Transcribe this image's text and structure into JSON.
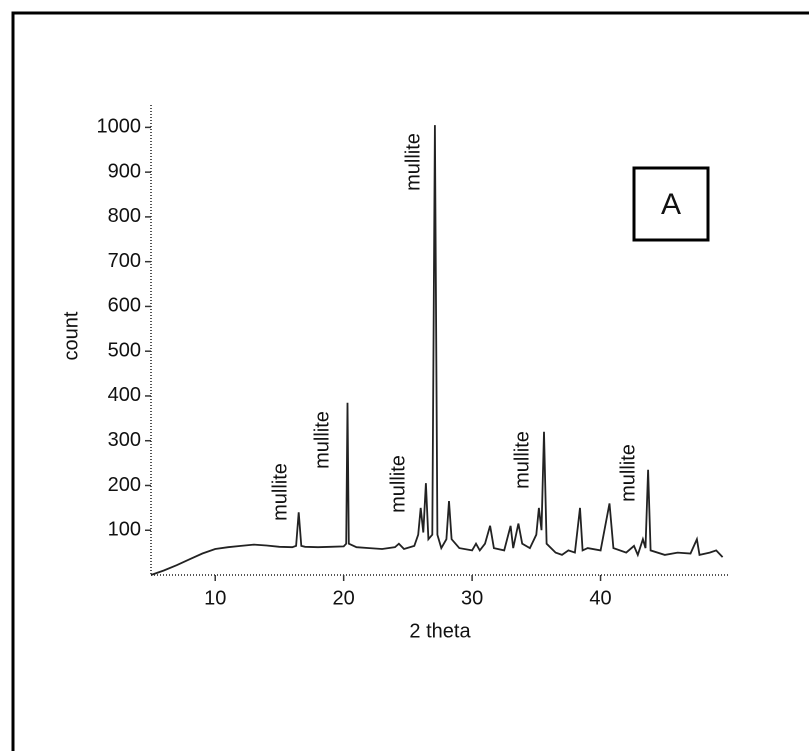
{
  "chart_data": {
    "type": "line",
    "panel_label": "A",
    "xlabel": "2 theta",
    "ylabel": "count",
    "xlim": [
      5,
      50
    ],
    "ylim": [
      0,
      1050
    ],
    "xticks": [
      10,
      20,
      30,
      40
    ],
    "yticks": [
      100,
      200,
      300,
      400,
      500,
      600,
      700,
      800,
      900,
      1000
    ],
    "annotations": [
      "mullite",
      "mullite",
      "mullite",
      "mullite",
      "mullite",
      "mullite"
    ],
    "series": [
      {
        "color": "#222222",
        "x": [
          5,
          6,
          7,
          8,
          9,
          10,
          11,
          12,
          13,
          14,
          15,
          16,
          16.3,
          16.5,
          16.7,
          17,
          18,
          19,
          20,
          20.2,
          20.3,
          20.4,
          21,
          22,
          23,
          24,
          24.3,
          24.7,
          25.5,
          25.8,
          26,
          26.2,
          26.4,
          26.6,
          26.9,
          27.1,
          27.3,
          27.6,
          28,
          28.2,
          28.4,
          29,
          30,
          30.3,
          30.6,
          31,
          31.4,
          31.7,
          32.5,
          33,
          33.2,
          33.6,
          33.9,
          34.5,
          35,
          35.2,
          35.4,
          35.6,
          35.8,
          36.5,
          37,
          37.5,
          38,
          38.4,
          38.6,
          39,
          40,
          40.7,
          41,
          42,
          42.6,
          42.9,
          43.3,
          43.5,
          43.7,
          43.9,
          45,
          46,
          47,
          47.5,
          47.7,
          48.5,
          49,
          49.5
        ],
        "values": [
          0,
          10,
          22,
          35,
          48,
          58,
          62,
          65,
          68,
          66,
          63,
          62,
          65,
          140,
          65,
          63,
          62,
          63,
          64,
          70,
          385,
          70,
          62,
          60,
          58,
          62,
          70,
          58,
          65,
          90,
          150,
          95,
          205,
          80,
          90,
          1005,
          90,
          60,
          80,
          165,
          80,
          60,
          55,
          70,
          55,
          70,
          110,
          60,
          55,
          110,
          60,
          115,
          70,
          60,
          90,
          150,
          100,
          320,
          70,
          50,
          45,
          55,
          50,
          150,
          55,
          60,
          55,
          160,
          60,
          50,
          65,
          45,
          80,
          60,
          235,
          55,
          45,
          50,
          48,
          80,
          45,
          50,
          55,
          40
        ]
      }
    ]
  }
}
